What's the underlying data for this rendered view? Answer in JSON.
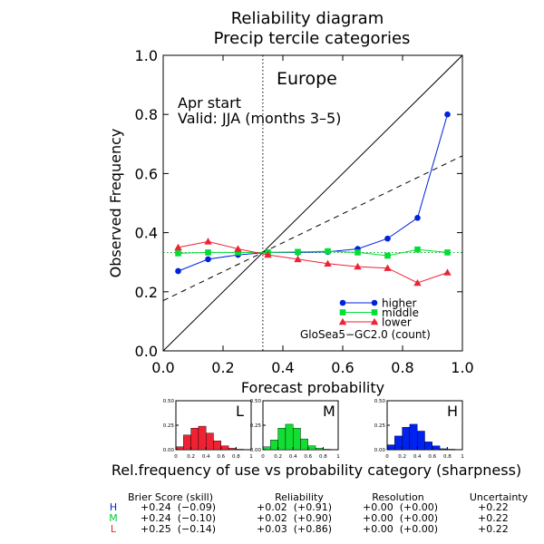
{
  "chart_data": {
    "type": "line",
    "title": "Reliability diagram",
    "subtitle": "Precip tercile categories",
    "xlabel": "Forecast probability",
    "ylabel": "Observed Frequency",
    "xlim": [
      0,
      1
    ],
    "ylim": [
      0,
      1
    ],
    "ticks": [
      "0.0",
      "0.2",
      "0.4",
      "0.6",
      "0.8",
      "1.0"
    ],
    "region": "Europe",
    "start_text": "Apr start",
    "valid_text": "Valid: JJA (months 3–5)",
    "climatology_x": 0.333,
    "skill_line": {
      "y_at_0": 0.17,
      "y_at_1": 0.66
    },
    "series": [
      {
        "name": "higher",
        "color": "#0022dd",
        "marker": "circle",
        "x": [
          0.05,
          0.15,
          0.25,
          0.35,
          0.45,
          0.55,
          0.65,
          0.75,
          0.85,
          0.95
        ],
        "y": [
          0.27,
          0.31,
          0.325,
          0.333,
          0.333,
          0.335,
          0.345,
          0.38,
          0.45,
          0.8
        ]
      },
      {
        "name": "middle",
        "color": "#00dd33",
        "marker": "square",
        "x": [
          0.05,
          0.15,
          0.25,
          0.35,
          0.45,
          0.55,
          0.65,
          0.75,
          0.85,
          0.95
        ],
        "y": [
          0.33,
          0.333,
          0.333,
          0.333,
          0.335,
          0.337,
          0.333,
          0.322,
          0.343,
          0.333
        ]
      },
      {
        "name": "lower",
        "color": "#ee2233",
        "marker": "triangle",
        "x": [
          0.05,
          0.15,
          0.25,
          0.35,
          0.45,
          0.55,
          0.65,
          0.75,
          0.85,
          0.95
        ],
        "y": [
          0.35,
          0.37,
          0.345,
          0.325,
          0.31,
          0.295,
          0.285,
          0.28,
          0.23,
          0.265
        ]
      }
    ],
    "legend_model": "GloSea5−GC2.0 (count)",
    "sharpness": {
      "caption": "Rel.frequency of use vs probability category (sharpness)",
      "ytick_labels": [
        "0.50",
        "0.25",
        "0.00"
      ],
      "xtick_labels": [
        "0",
        "0.2",
        "0.4",
        "0.6",
        "0.8",
        "1"
      ],
      "panels": [
        {
          "label": "L",
          "color": "#ee2233",
          "values": [
            0.03,
            0.15,
            0.22,
            0.24,
            0.17,
            0.09,
            0.04,
            0.015,
            0.005,
            0.0
          ]
        },
        {
          "label": "M",
          "color": "#11dd33",
          "values": [
            0.03,
            0.1,
            0.22,
            0.26,
            0.22,
            0.11,
            0.04,
            0.015,
            0.005,
            0.0
          ]
        },
        {
          "label": "H",
          "color": "#0022ee",
          "values": [
            0.05,
            0.14,
            0.23,
            0.26,
            0.19,
            0.08,
            0.04,
            0.01,
            0.005,
            0.0
          ]
        }
      ]
    },
    "scores": {
      "headers": [
        "Brier Score (skill)",
        "Reliability",
        "Resolution",
        "Uncertainty"
      ],
      "rows": [
        {
          "label": "H",
          "color": "#0022ee",
          "cells": [
            "+0.24  (−0.09)",
            "+0.02  (+0.91)",
            "+0.00  (+0.00)",
            "+0.22"
          ]
        },
        {
          "label": "M",
          "color": "#00cc33",
          "cells": [
            "+0.24  (−0.10)",
            "+0.02  (+0.90)",
            "+0.00  (+0.00)",
            "+0.22"
          ]
        },
        {
          "label": "L",
          "color": "#ee2233",
          "cells": [
            "+0.25  (−0.14)",
            "+0.03  (+0.86)",
            "+0.00  (+0.00)",
            "+0.22"
          ]
        }
      ]
    }
  }
}
